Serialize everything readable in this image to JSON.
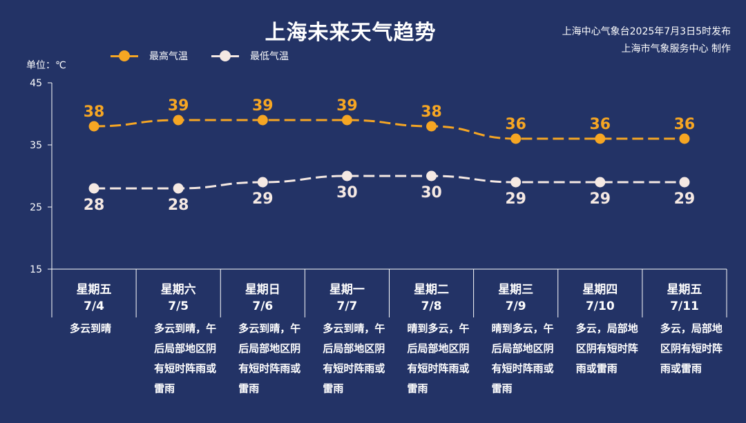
{
  "title": "上海未来天气趋势",
  "publisher": {
    "line1": "上海中心气象台2025年7月3日5时发布",
    "line2": "上海市气象服务中心 制作"
  },
  "colors": {
    "high": "#f6a623",
    "low": "#f5e9e3",
    "background": "#233366",
    "axis": "#ffffff"
  },
  "chart_data": {
    "type": "line",
    "unit_label": "单位：℃",
    "ylim": [
      15,
      45
    ],
    "yticks": [
      15,
      25,
      35,
      45
    ],
    "legend": [
      "最高气温",
      "最低气温"
    ],
    "legend_position": "top-left",
    "grid": false,
    "categories": [
      "7/4",
      "7/5",
      "7/6",
      "7/7",
      "7/8",
      "7/9",
      "7/10",
      "7/11"
    ],
    "weekdays": [
      "星期五",
      "星期六",
      "星期日",
      "星期一",
      "星期二",
      "星期三",
      "星期四",
      "星期五"
    ],
    "series": [
      {
        "name": "最高气温",
        "values": [
          38,
          39,
          39,
          39,
          38,
          36,
          36,
          36
        ]
      },
      {
        "name": "最低气温",
        "values": [
          28,
          28,
          29,
          30,
          30,
          29,
          29,
          29
        ]
      }
    ],
    "conditions": [
      "多云到晴",
      "多云到晴，午后局部地区阴有短时阵雨或雷雨",
      "多云到晴，午后局部地区阴有短时阵雨或雷雨",
      "多云到晴，午后局部地区阴有短时阵雨或雷雨",
      "晴到多云，午后局部地区阴有短时阵雨或雷雨",
      "晴到多云，午后局部地区阴有短时阵雨或雷雨",
      "多云，局部地区阴有短时阵雨或雷雨",
      "多云，局部地区阴有短时阵雨或雷雨"
    ]
  }
}
